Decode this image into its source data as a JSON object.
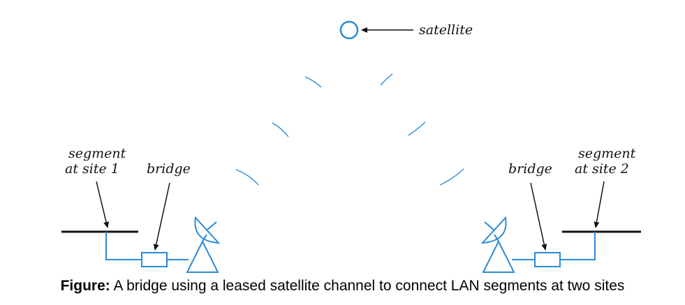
{
  "labels": {
    "satellite": "satellite",
    "segment_site1_line1": "segment",
    "segment_site1_line2": "at site 1",
    "bridge_left": "bridge",
    "bridge_right": "bridge",
    "segment_site2_line1": "segment",
    "segment_site2_line2": "at site 2"
  },
  "caption": {
    "prefix": "Figure:",
    "text": " A bridge using a leased satellite channel to connect LAN segments at two sites"
  },
  "colors": {
    "network": "#2b8ad8",
    "ink": "#111111"
  }
}
